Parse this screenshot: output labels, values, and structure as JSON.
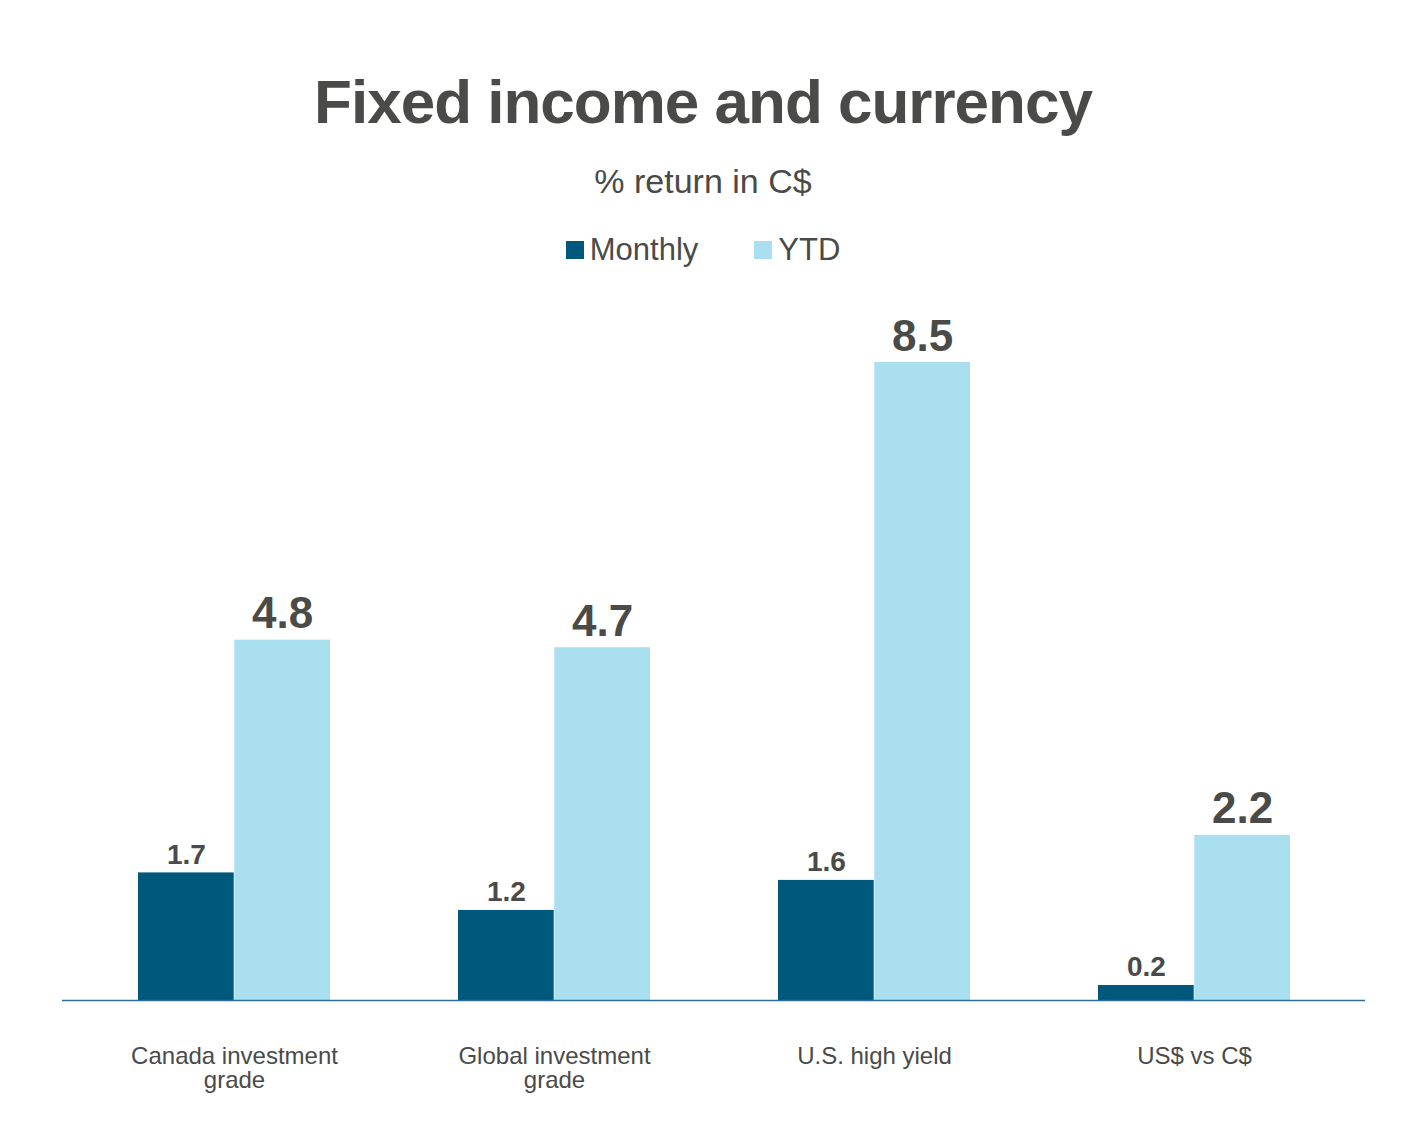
{
  "chart_data": {
    "type": "bar",
    "title": "Fixed income and currency",
    "subtitle": "% return in C$",
    "categories": [
      "Canada investment grade",
      "Global investment grade",
      "U.S. high yield",
      "US$ vs C$"
    ],
    "series": [
      {
        "name": "Monthly",
        "color": "#00587c",
        "values": [
          1.7,
          1.2,
          1.6,
          0.2
        ]
      },
      {
        "name": "YTD",
        "color": "#aadff0",
        "values": [
          4.8,
          4.7,
          8.5,
          2.2
        ]
      }
    ],
    "ylim": [
      0,
      8.5
    ],
    "data_labels": true,
    "tick_labels": "x",
    "legend": "top"
  }
}
